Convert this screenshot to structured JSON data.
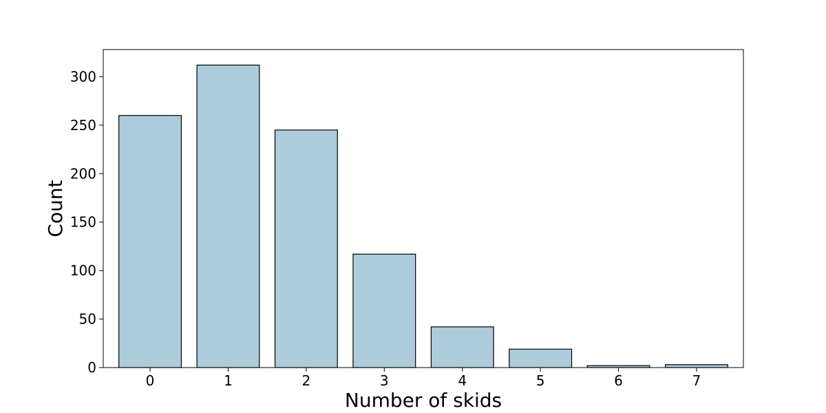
{
  "chart_data": {
    "type": "bar",
    "title": "",
    "xlabel": "Number of skids",
    "ylabel": "Count",
    "categories": [
      "0",
      "1",
      "2",
      "3",
      "4",
      "5",
      "6",
      "7"
    ],
    "values": [
      260,
      312,
      245,
      117,
      42,
      19,
      2,
      3
    ],
    "ylim": [
      0,
      328
    ],
    "yticks": [
      0,
      50,
      100,
      150,
      200,
      250,
      300
    ],
    "grid": false,
    "legend": "none",
    "colors": {
      "bar_fill": "#aecbdc",
      "bar_edge": "#000000",
      "axis": "#000000",
      "background": "#ffffff"
    }
  }
}
